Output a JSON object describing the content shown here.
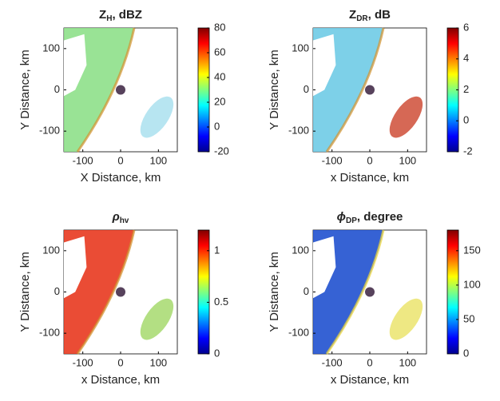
{
  "chart_data": [
    {
      "type": "image",
      "title": "Z",
      "title_sub": "H",
      "title_rest": ", dBZ",
      "x_label": "X Distance, km",
      "y_label": "Y Distance, km",
      "xlim": [
        -150,
        150
      ],
      "xticks": [
        -100,
        0,
        100
      ],
      "ylim": [
        -150,
        150
      ],
      "yticks": [
        -100,
        0,
        100
      ],
      "clim": [
        -20,
        80
      ],
      "cticks": [
        -20,
        0,
        20,
        40,
        60,
        80
      ],
      "colormap": "jet",
      "color": "#8ee08a"
    },
    {
      "type": "image",
      "title": "Z",
      "title_sub": "DR",
      "title_rest": ", dB",
      "x_label": "x Distance, km",
      "y_label": "Y Distance, km",
      "xlim": [
        -150,
        150
      ],
      "xticks": [
        -100,
        0,
        100
      ],
      "ylim": [
        -150,
        150
      ],
      "yticks": [
        -100,
        0,
        100
      ],
      "clim": [
        -2,
        6
      ],
      "cticks": [
        -2,
        0,
        2,
        4,
        6
      ],
      "colormap": "jet",
      "color": "#6fcbe6"
    },
    {
      "type": "image",
      "title": "ρ",
      "title_sub": "hv",
      "title_rest": "",
      "x_label": "x Distance, km",
      "y_label": "Y Distance, km",
      "xlim": [
        -150,
        150
      ],
      "xticks": [
        -100,
        0,
        100
      ],
      "ylim": [
        -150,
        150
      ],
      "yticks": [
        -100,
        0,
        100
      ],
      "clim": [
        0,
        1.2
      ],
      "cticks": [
        0,
        0.5,
        1
      ],
      "colormap": "jet",
      "color": "#e8391f"
    },
    {
      "type": "image",
      "title": "ϕ",
      "title_sub": "DP",
      "title_rest": ", degree",
      "x_label": "x Distance, km",
      "y_label": "Y Distance, km",
      "xlim": [
        -150,
        150
      ],
      "xticks": [
        -100,
        0,
        100
      ],
      "ylim": [
        -150,
        150
      ],
      "yticks": [
        -100,
        0,
        100
      ],
      "clim": [
        0,
        180
      ],
      "cticks": [
        0,
        50,
        100,
        150
      ],
      "colormap": "jet",
      "color": "#2051cf"
    }
  ]
}
